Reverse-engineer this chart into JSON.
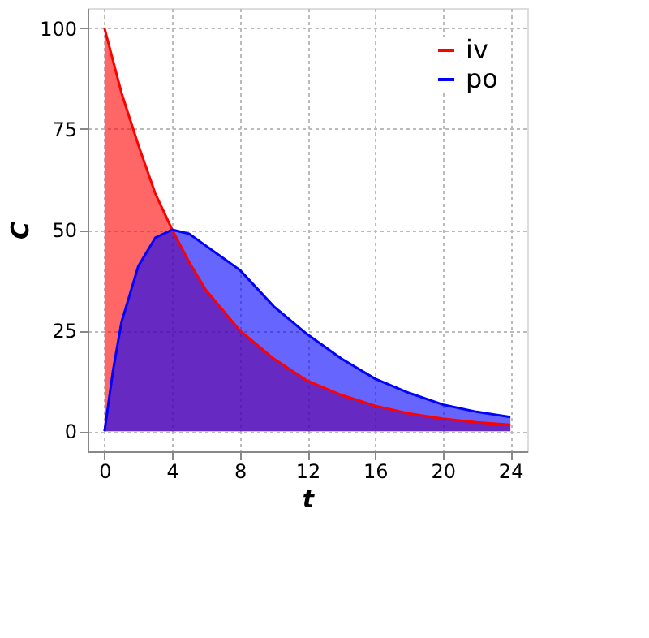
{
  "chart_data": {
    "type": "area",
    "xlabel": "t",
    "ylabel": "C",
    "series": [
      {
        "name": "iv",
        "color": "#ff0000",
        "x": [
          0,
          1,
          2,
          3,
          4,
          5,
          6,
          7,
          8,
          10,
          12,
          14,
          16,
          18,
          20,
          22,
          24
        ],
        "values": [
          100,
          84,
          71,
          59,
          50,
          42,
          35,
          30,
          25,
          18,
          12.5,
          9,
          6.3,
          4.4,
          3.1,
          2.2,
          1.6
        ]
      },
      {
        "name": "po",
        "color": "#0000ff",
        "x": [
          0,
          0.5,
          1,
          2,
          3,
          4,
          5,
          6,
          7,
          8,
          10,
          12,
          14,
          16,
          18,
          20,
          22,
          24
        ],
        "values": [
          0,
          15,
          27,
          41,
          48,
          50,
          49,
          46,
          43,
          40,
          31,
          24,
          18,
          13,
          9.5,
          6.6,
          4.8,
          3.5
        ]
      }
    ],
    "xlim": [
      -1,
      25
    ],
    "ylim": [
      -5,
      105
    ],
    "xticks": [
      0,
      4,
      8,
      12,
      16,
      20,
      24
    ],
    "yticks": [
      0,
      25,
      50,
      75,
      100
    ],
    "grid": true,
    "legend": "top right"
  }
}
